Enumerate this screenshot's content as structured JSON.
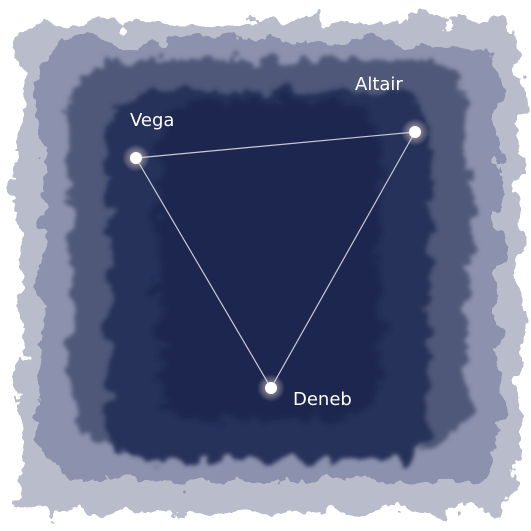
{
  "nodes": [
    {
      "label": "Vega"
    },
    {
      "label": "Altair"
    },
    {
      "label": "Deneb"
    }
  ]
}
